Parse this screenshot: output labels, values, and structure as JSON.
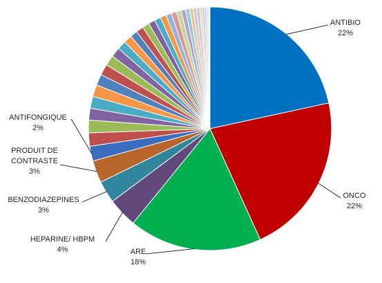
{
  "chart_data": {
    "type": "pie",
    "start_angle_deg": 0,
    "direction": "clockwise",
    "slices": [
      {
        "name": "ANTIBIO",
        "value": 22,
        "value_label": "22%",
        "color": "#0070C0",
        "labeled": true
      },
      {
        "name": "ONCO",
        "value": 22,
        "value_label": "22%",
        "color": "#C00000",
        "labeled": true
      },
      {
        "name": "ARE",
        "value": 18,
        "value_label": "18%",
        "color": "#00B050",
        "labeled": true
      },
      {
        "name": "HEPARINE/  HBPM",
        "value": 4,
        "value_label": "4%",
        "color": "#60497A",
        "labeled": true
      },
      {
        "name": "BENZODIAZEPINES",
        "value": 3,
        "value_label": "3%",
        "color": "#31859C",
        "labeled": true
      },
      {
        "name": "PRODUIT DE CONTRASTE",
        "value_lines": [
          "PRODUIT DE",
          "CONTRASTE"
        ],
        "value": 3,
        "value_label": "3%",
        "color": "#B7652A",
        "labeled": true
      },
      {
        "name": "ANTIFONGIQUE",
        "value": 2,
        "value_label": "2%",
        "color": "#3B6DBF",
        "labeled": true
      },
      {
        "value": 1.8,
        "color": "#C0504D"
      },
      {
        "value": 1.7,
        "color": "#9BBB59"
      },
      {
        "value": 1.6,
        "color": "#8064A2"
      },
      {
        "value": 1.6,
        "color": "#4BACC6"
      },
      {
        "value": 1.6,
        "color": "#F79646"
      },
      {
        "value": 1.5,
        "color": "#4F81BD"
      },
      {
        "value": 1.5,
        "color": "#C0504D"
      },
      {
        "value": 1.4,
        "color": "#9BBB59"
      },
      {
        "value": 1.3,
        "color": "#8064A2"
      },
      {
        "value": 1.2,
        "color": "#4BACC6"
      },
      {
        "value": 1.1,
        "color": "#F79646"
      },
      {
        "value": 1.0,
        "color": "#4F81BD"
      },
      {
        "value": 1.0,
        "color": "#C0504D"
      },
      {
        "value": 0.95,
        "color": "#9BBB59"
      },
      {
        "value": 0.9,
        "color": "#8064A2"
      },
      {
        "value": 0.85,
        "color": "#4BACC6"
      },
      {
        "value": 0.8,
        "color": "#F79646"
      },
      {
        "value": 0.75,
        "color": "#95B3D7"
      },
      {
        "value": 0.7,
        "color": "#D99694"
      },
      {
        "value": 0.65,
        "color": "#C3D69B"
      },
      {
        "value": 0.6,
        "color": "#B3A2C7"
      },
      {
        "value": 0.55,
        "color": "#93CDDD"
      },
      {
        "value": 0.5,
        "color": "#FAC090"
      },
      {
        "value": 0.45,
        "color": "#B9CDE5"
      },
      {
        "value": 0.4,
        "color": "#E6B9B8"
      },
      {
        "value": 0.35,
        "color": "#D7E4BD"
      },
      {
        "value": 0.3,
        "color": "#CCC1DA"
      },
      {
        "value": 0.3,
        "color": "#B7DEE8"
      },
      {
        "value": 0.25,
        "color": "#FCD5B5"
      },
      {
        "value": 0.2,
        "color": "#DCE6F2"
      }
    ]
  }
}
